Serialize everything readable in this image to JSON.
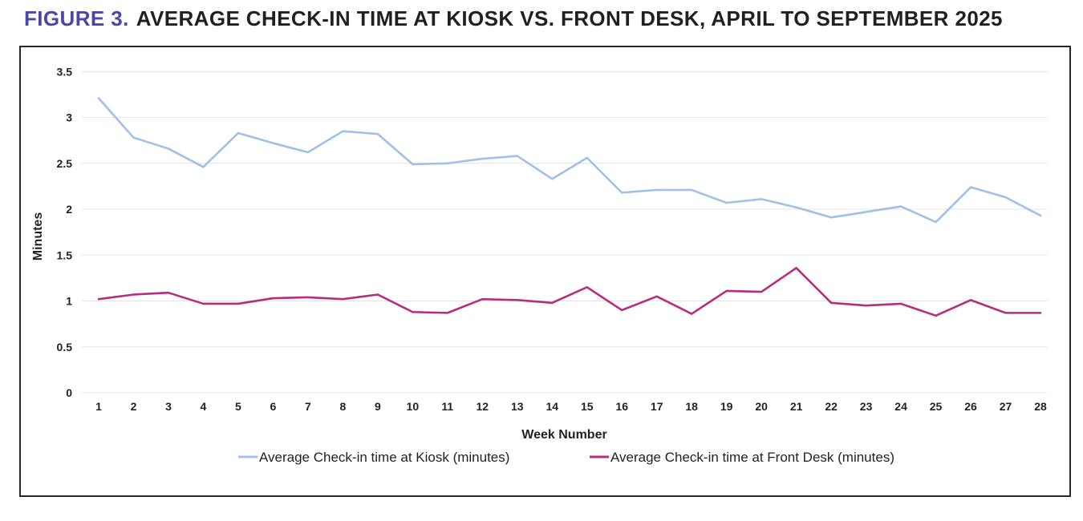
{
  "title": {
    "prefix": "FIGURE 3.",
    "text": "AVERAGE CHECK-IN TIME AT KIOSK VS. FRONT DESK, APRIL TO SEPTEMBER 2025"
  },
  "colors": {
    "title_prefix": "#4b47a5",
    "kiosk_line": "#9fc1e7",
    "front_desk_line": "#b52d7f",
    "grid": "#e4e4e4",
    "text": "#231f20",
    "panel_border": "#29272b"
  },
  "chart_data": {
    "type": "line",
    "title": "Average check-in time at kiosk vs. front desk, April to September 2025",
    "xlabel": "Week Number",
    "ylabel": "Minutes",
    "ylim": [
      0,
      3.5
    ],
    "grid": true,
    "legend_position": "bottom",
    "x": [
      1,
      2,
      3,
      4,
      5,
      6,
      7,
      8,
      9,
      10,
      11,
      12,
      13,
      14,
      15,
      16,
      17,
      18,
      19,
      20,
      21,
      22,
      23,
      24,
      25,
      26,
      27,
      28
    ],
    "yticks": [
      3.5,
      3,
      2.5,
      2,
      1.5,
      1,
      0.5,
      0
    ],
    "ytick_labels": [
      "3.5",
      "3",
      "2.5",
      "2",
      "1.5",
      "1",
      "0.5",
      "0"
    ],
    "series": [
      {
        "name": "Average Check-in time at Kiosk (minutes)",
        "color": "#9fc1e7",
        "values": [
          3.21,
          2.78,
          2.66,
          2.46,
          2.83,
          2.72,
          2.62,
          2.85,
          2.82,
          2.49,
          2.5,
          2.55,
          2.58,
          2.33,
          2.56,
          2.18,
          2.21,
          2.21,
          2.07,
          2.11,
          2.02,
          1.91,
          1.97,
          2.03,
          1.86,
          2.24,
          2.13,
          1.93
        ]
      },
      {
        "name": "Average Check-in time at Front Desk (minutes)",
        "color": "#b52d7f",
        "values": [
          1.02,
          1.07,
          1.09,
          0.97,
          0.97,
          1.03,
          1.04,
          1.02,
          1.07,
          0.88,
          0.87,
          1.02,
          1.01,
          0.98,
          1.15,
          0.9,
          1.05,
          0.86,
          1.11,
          1.1,
          1.36,
          0.98,
          0.95,
          0.97,
          0.84,
          1.01,
          0.87,
          0.87
        ]
      }
    ]
  }
}
